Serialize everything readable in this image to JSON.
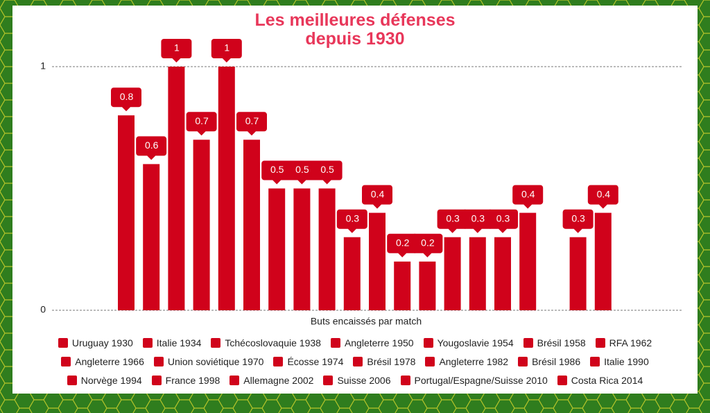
{
  "chart_data": {
    "type": "bar",
    "title": "Les meilleures défenses depuis 1930",
    "y_label": "Buts encaissés par match",
    "ylim": [
      0,
      1
    ],
    "yticks": [
      0,
      1
    ],
    "grid": true,
    "legend": "bottom",
    "series": [
      {
        "name": "Uruguay 1930",
        "color": "#d0021b",
        "values": [
          0.8
        ]
      },
      {
        "name": "Italie 1934",
        "color": "#d0021b",
        "values": [
          0.6
        ]
      },
      {
        "name": "Tchécoslovaquie 1938",
        "color": "#d0021b",
        "values": [
          1
        ]
      },
      {
        "name": "Angleterre 1950",
        "color": "#d0021b",
        "values": [
          0.7
        ]
      },
      {
        "name": "Yougoslavie 1954",
        "color": "#d0021b",
        "values": [
          1
        ]
      },
      {
        "name": "Brésil 1958",
        "color": "#d0021b",
        "values": [
          0.7
        ]
      },
      {
        "name": "RFA 1962",
        "color": "#d0021b",
        "values": [
          0.5
        ]
      },
      {
        "name": "Angleterre 1966",
        "color": "#d0021b",
        "values": [
          0.5
        ]
      },
      {
        "name": "Union soviétique 1970",
        "color": "#d0021b",
        "values": [
          0.5
        ]
      },
      {
        "name": "Écosse 1974",
        "color": "#d0021b",
        "values": [
          0.3
        ]
      },
      {
        "name": "Brésil 1978",
        "color": "#d0021b",
        "values": [
          0.4
        ]
      },
      {
        "name": "Angleterre 1982",
        "color": "#d0021b",
        "values": [
          0.2
        ]
      },
      {
        "name": "Brésil 1986",
        "color": "#d0021b",
        "values": [
          0.2
        ]
      },
      {
        "name": "Italie 1990",
        "color": "#d0021b",
        "values": [
          0.3
        ]
      },
      {
        "name": "Norvège 1994",
        "color": "#d0021b",
        "values": [
          0.3
        ]
      },
      {
        "name": "France 1998",
        "color": "#d0021b",
        "values": [
          0.3
        ]
      },
      {
        "name": "Allemagne 2002",
        "color": "#d0021b",
        "values": [
          0.4
        ]
      },
      {
        "name": "Suisse 2006",
        "color": "#d0021b",
        "values": [
          0
        ]
      },
      {
        "name": "Portugal/Espagne/Suisse 2010",
        "color": "#d0021b",
        "values": [
          0.3
        ]
      },
      {
        "name": "Costa Rica 2014",
        "color": "#d0021b",
        "values": [
          0.4
        ]
      }
    ]
  }
}
